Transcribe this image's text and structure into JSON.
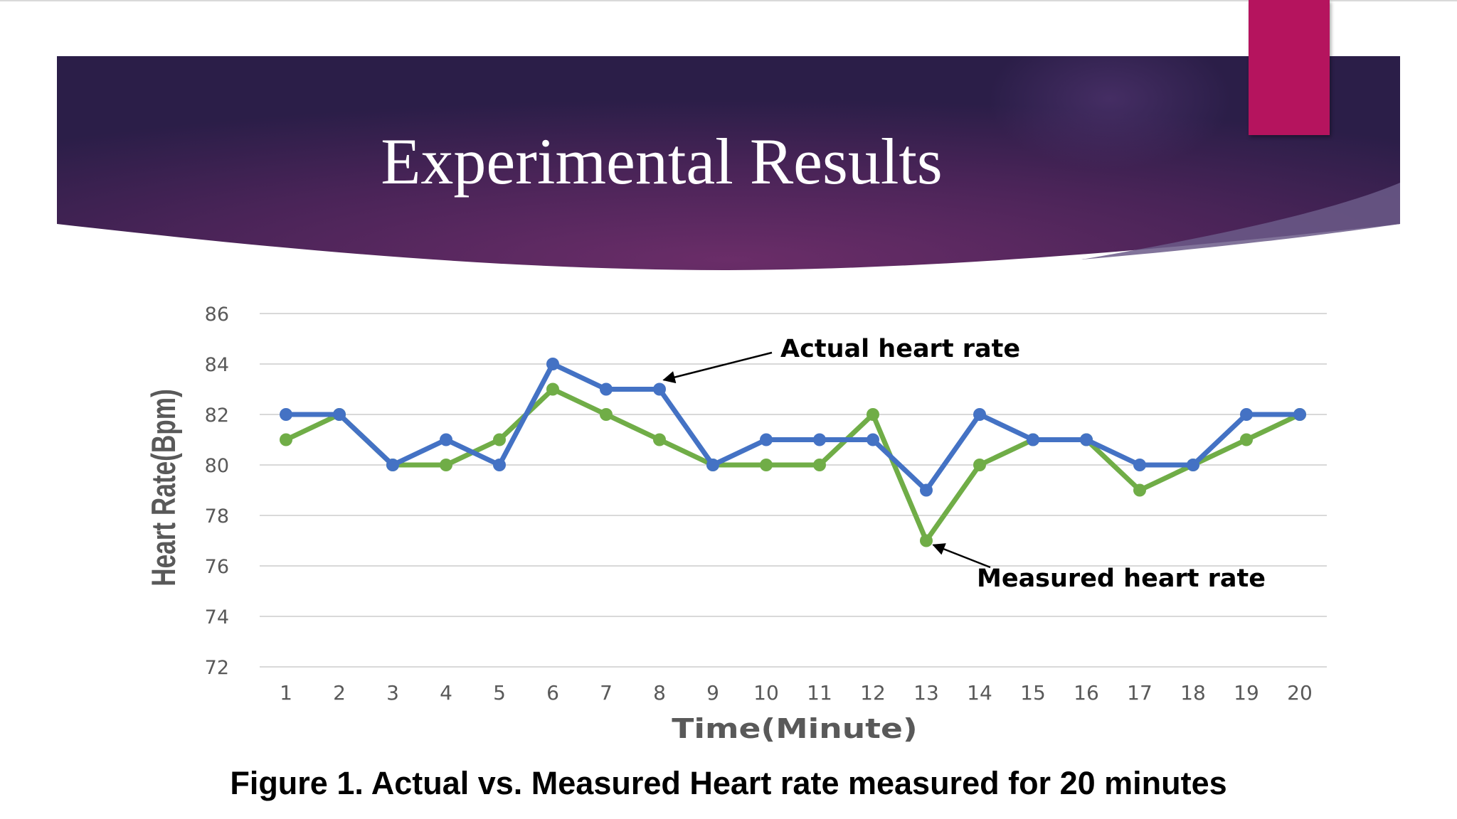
{
  "slide": {
    "title": "Experimental Results",
    "caption": "Figure 1. Actual vs. Measured Heart rate measured for 20 minutes"
  },
  "colors": {
    "banner_dark": "#2b1e48",
    "banner_mid": "#6a2d68",
    "accent": "#b5145e",
    "actual": "#4472c4",
    "measured": "#70ad47",
    "grid": "#d9d9d9",
    "tick": "#595959"
  },
  "chart_data": {
    "type": "line",
    "title": "",
    "xlabel": "Time(Minute)",
    "ylabel": "Heart Rate(Bpm)",
    "categories": [
      "1",
      "2",
      "3",
      "4",
      "5",
      "6",
      "7",
      "8",
      "9",
      "10",
      "11",
      "12",
      "13",
      "14",
      "15",
      "16",
      "17",
      "18",
      "19",
      "20"
    ],
    "ylim": [
      72,
      86
    ],
    "yticks": [
      "72",
      "74",
      "76",
      "78",
      "80",
      "82",
      "84",
      "86"
    ],
    "grid": true,
    "series": [
      {
        "key": "actual",
        "values": [
          82,
          82,
          80,
          81,
          80,
          84,
          83,
          83,
          80,
          81,
          81,
          81,
          79,
          82,
          81,
          81,
          80,
          80,
          82,
          82
        ]
      },
      {
        "key": "measured",
        "values": [
          81,
          82,
          80,
          80,
          81,
          83,
          82,
          81,
          80,
          80,
          80,
          82,
          77,
          80,
          81,
          81,
          79,
          80,
          81,
          82
        ]
      }
    ],
    "annotations": [
      {
        "text": "Actual heart rate",
        "series": "actual",
        "point": 8
      },
      {
        "text": "Measured heart rate",
        "series": "measured",
        "point": 13
      }
    ]
  }
}
